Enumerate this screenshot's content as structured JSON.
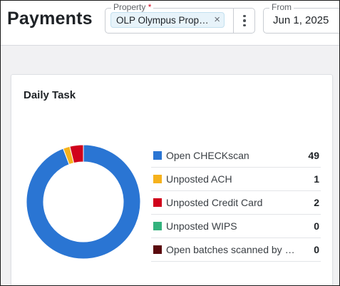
{
  "header": {
    "title": "Payments",
    "property_field": {
      "label": "Property",
      "required_mark": "*",
      "chip_label": "OLP Olympus Proper...",
      "close_icon": "×"
    },
    "more_menu_icon": "kebab-vertical-icon",
    "from_field": {
      "label": "From",
      "value": "Jun 1, 2025"
    }
  },
  "card": {
    "title": "Daily Task"
  },
  "chart_data": {
    "type": "pie",
    "variant": "donut",
    "categories": [
      "Open CHECKscan",
      "Unposted ACH",
      "Unposted Credit Card",
      "Unposted WIPS",
      "Open batches scanned by Mobil..."
    ],
    "values": [
      49,
      1,
      2,
      0,
      0
    ],
    "colors": [
      "#2a75d3",
      "#f6b21c",
      "#d0021b",
      "#33b27d",
      "#5a0a0e"
    ]
  }
}
